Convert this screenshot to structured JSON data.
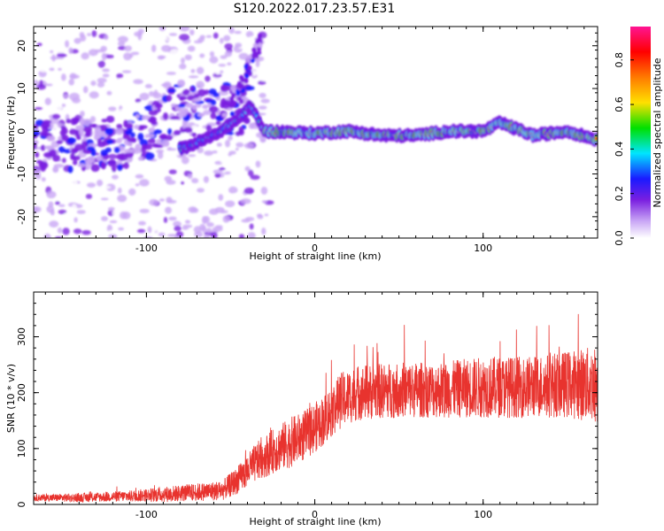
{
  "title": "S120.2022.017.23.57.E31",
  "chart_data": [
    {
      "type": "heatmap",
      "xlabel": "Height of straight line (km)",
      "ylabel": "Frequency (Hz)",
      "xlim": [
        -167,
        168
      ],
      "ylim": [
        -25,
        24.5
      ],
      "xticks": [
        -100,
        0,
        100
      ],
      "yticks": [
        -20,
        -10,
        0,
        10,
        20
      ],
      "colorbar": {
        "label": "Normalized spectral amplitude",
        "range": [
          0,
          0.95
        ],
        "ticks": [
          0.0,
          0.2,
          0.4,
          0.6,
          0.8
        ],
        "colors": [
          "#ffffff",
          "#c9a6f5",
          "#7a1fe0",
          "#1a1aff",
          "#00e5ff",
          "#00e000",
          "#ffe000",
          "#ff7a00",
          "#ff0000",
          "#ff1493"
        ]
      },
      "ridge": {
        "description_points_km_hz": [
          [
            -78,
            -4
          ],
          [
            -60,
            -1
          ],
          [
            -45,
            3
          ],
          [
            -38,
            6
          ],
          [
            -30,
            0
          ],
          [
            0,
            -0.5
          ],
          [
            20,
            0
          ],
          [
            40,
            -1
          ],
          [
            60,
            -1
          ],
          [
            80,
            0
          ],
          [
            100,
            0
          ],
          [
            110,
            2
          ],
          [
            130,
            -1
          ],
          [
            150,
            0
          ],
          [
            168,
            -2
          ]
        ],
        "diffuse_branch": [
          [
            -160,
            -3
          ],
          [
            -140,
            -3
          ],
          [
            -120,
            -3
          ],
          [
            -100,
            -1
          ],
          [
            -90,
            2
          ],
          [
            -80,
            6
          ],
          [
            -70,
            5
          ]
        ]
      }
    },
    {
      "type": "line",
      "xlabel": "Height of straight line (km)",
      "ylabel": "SNR (10 * v/v)",
      "xlim": [
        -167,
        168
      ],
      "ylim": [
        0,
        380
      ],
      "xticks": [
        -100,
        0,
        100
      ],
      "yticks": [
        0,
        100,
        200,
        300
      ],
      "color": "#e8332e",
      "envelope": {
        "x": [
          -167,
          -140,
          -110,
          -90,
          -70,
          -55,
          -45,
          -35,
          -25,
          -15,
          -5,
          5,
          15,
          25,
          50,
          75,
          100,
          125,
          150,
          168
        ],
        "mean": [
          12,
          12,
          15,
          18,
          22,
          25,
          45,
          75,
          95,
          110,
          125,
          150,
          185,
          200,
          205,
          205,
          210,
          210,
          215,
          215
        ],
        "spread": [
          6,
          8,
          10,
          14,
          16,
          18,
          25,
          35,
          40,
          45,
          45,
          45,
          50,
          50,
          50,
          50,
          55,
          55,
          60,
          70
        ]
      }
    }
  ]
}
